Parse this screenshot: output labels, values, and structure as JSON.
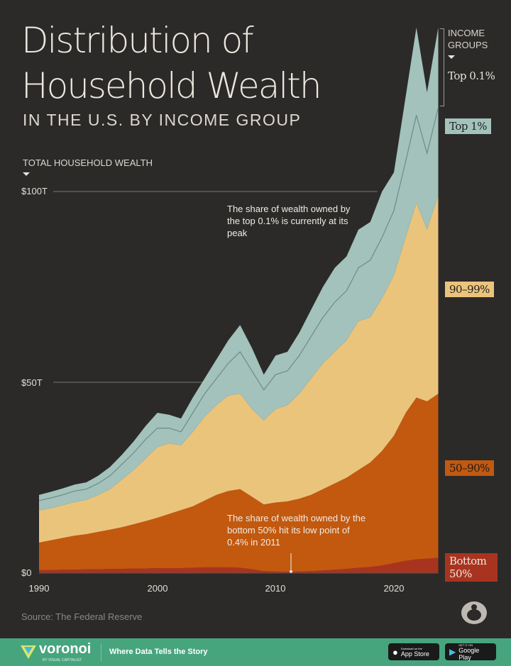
{
  "header": {
    "title_line1": "Distribution of",
    "title_line2": "Household Wealth",
    "subtitle": "IN THE U.S. BY INCOME GROUP"
  },
  "legend": {
    "heading_line1": "INCOME",
    "heading_line2": "GROUPS"
  },
  "chart_data": {
    "type": "area",
    "stacked": true,
    "ylabel": "TOTAL HOUSEHOLD WEALTH",
    "ylim": [
      0,
      145
    ],
    "y_ticks": [
      {
        "value": 0,
        "label": "$0"
      },
      {
        "value": 50,
        "label": "$50T"
      },
      {
        "value": 100,
        "label": "$100T"
      }
    ],
    "x_ticks": [
      {
        "value": 1990,
        "label": "1990"
      },
      {
        "value": 2000,
        "label": "2000"
      },
      {
        "value": 2010,
        "label": "2010"
      },
      {
        "value": 2020,
        "label": "2020"
      }
    ],
    "xlim": [
      1990,
      2023.75
    ],
    "x": [
      1990,
      1991,
      1992,
      1993,
      1994,
      1995,
      1996,
      1997,
      1998,
      1999,
      2000,
      2001,
      2002,
      2003,
      2004,
      2005,
      2006,
      2007,
      2008,
      2009,
      2010,
      2011,
      2012,
      2013,
      2014,
      2015,
      2016,
      2017,
      2018,
      2019,
      2020,
      2021,
      2021.9,
      2022.8,
      2023.75
    ],
    "unit": "trillion USD",
    "series": [
      {
        "name": "Bottom 50%",
        "color": "#a83420",
        "values": [
          0.8,
          0.8,
          0.9,
          0.9,
          1.0,
          1.0,
          1.1,
          1.1,
          1.2,
          1.2,
          1.3,
          1.3,
          1.3,
          1.4,
          1.5,
          1.5,
          1.5,
          1.4,
          1.0,
          0.5,
          0.4,
          0.3,
          0.4,
          0.5,
          0.7,
          0.9,
          1.1,
          1.4,
          1.6,
          2.0,
          2.6,
          3.2,
          3.6,
          3.8,
          4.0
        ]
      },
      {
        "name": "50–90%",
        "color": "#c2590f",
        "values": [
          7.2,
          7.8,
          8.3,
          8.9,
          9.2,
          9.8,
          10.3,
          10.9,
          11.6,
          12.4,
          13.2,
          14.2,
          15.2,
          16.1,
          17.5,
          19,
          20,
          20.6,
          19,
          17.5,
          18.1,
          18.5,
          19.1,
          20,
          21.3,
          22.6,
          23.9,
          25.6,
          27.4,
          30,
          33.4,
          38.8,
          42.4,
          41.2,
          43
        ]
      },
      {
        "name": "90–99%",
        "color": "#ebc47c",
        "values": [
          8.4,
          8.4,
          8.6,
          8.8,
          9,
          9.7,
          10.6,
          12.5,
          14.2,
          16.4,
          18.5,
          18.5,
          17,
          19.5,
          22,
          23.5,
          25,
          25,
          23,
          22,
          24.5,
          25.2,
          27.5,
          30.5,
          33,
          34.5,
          36,
          39,
          38,
          40,
          42,
          46,
          51,
          45,
          52
        ]
      },
      {
        "name": "Top 1%",
        "color": "#a2c2bb",
        "values": [
          2.6,
          2.7,
          2.7,
          2.9,
          2.8,
          3,
          3.5,
          4,
          4.5,
          5,
          5,
          4,
          3.5,
          5,
          6,
          7,
          8.5,
          11,
          10,
          8,
          9,
          9,
          10,
          11,
          12,
          13,
          13,
          14,
          15,
          16,
          17,
          20,
          23,
          20,
          23
        ]
      },
      {
        "name": "Top 0.1%",
        "color": "#a2c2bb",
        "values": [
          1.5,
          1.6,
          1.7,
          1.7,
          1.8,
          2,
          2.3,
          2.5,
          3,
          3.5,
          4,
          3.5,
          3.5,
          4,
          4,
          5,
          6,
          7,
          6,
          4,
          5,
          5,
          6,
          7,
          8,
          9,
          9,
          10,
          10,
          12,
          10,
          17,
          23,
          16,
          21
        ]
      }
    ],
    "annotations": [
      {
        "text": "The share of wealth owned by the top 0.1% is currently at its peak"
      },
      {
        "text": "The share of wealth owned by the bottom 50% hit its low point of 0.4% in 2011"
      }
    ],
    "legend_placement": "right",
    "grid": false
  },
  "footer": {
    "source": "Source: The Federal Reserve",
    "brand": "voronoi",
    "brand_sub": "BY VISUAL CAPITALIST",
    "tagline": "Where Data Tells the Story",
    "app_store_small": "Download on the",
    "app_store": "App Store",
    "google_play_small": "GET IT ON",
    "google_play": "Google Play"
  }
}
